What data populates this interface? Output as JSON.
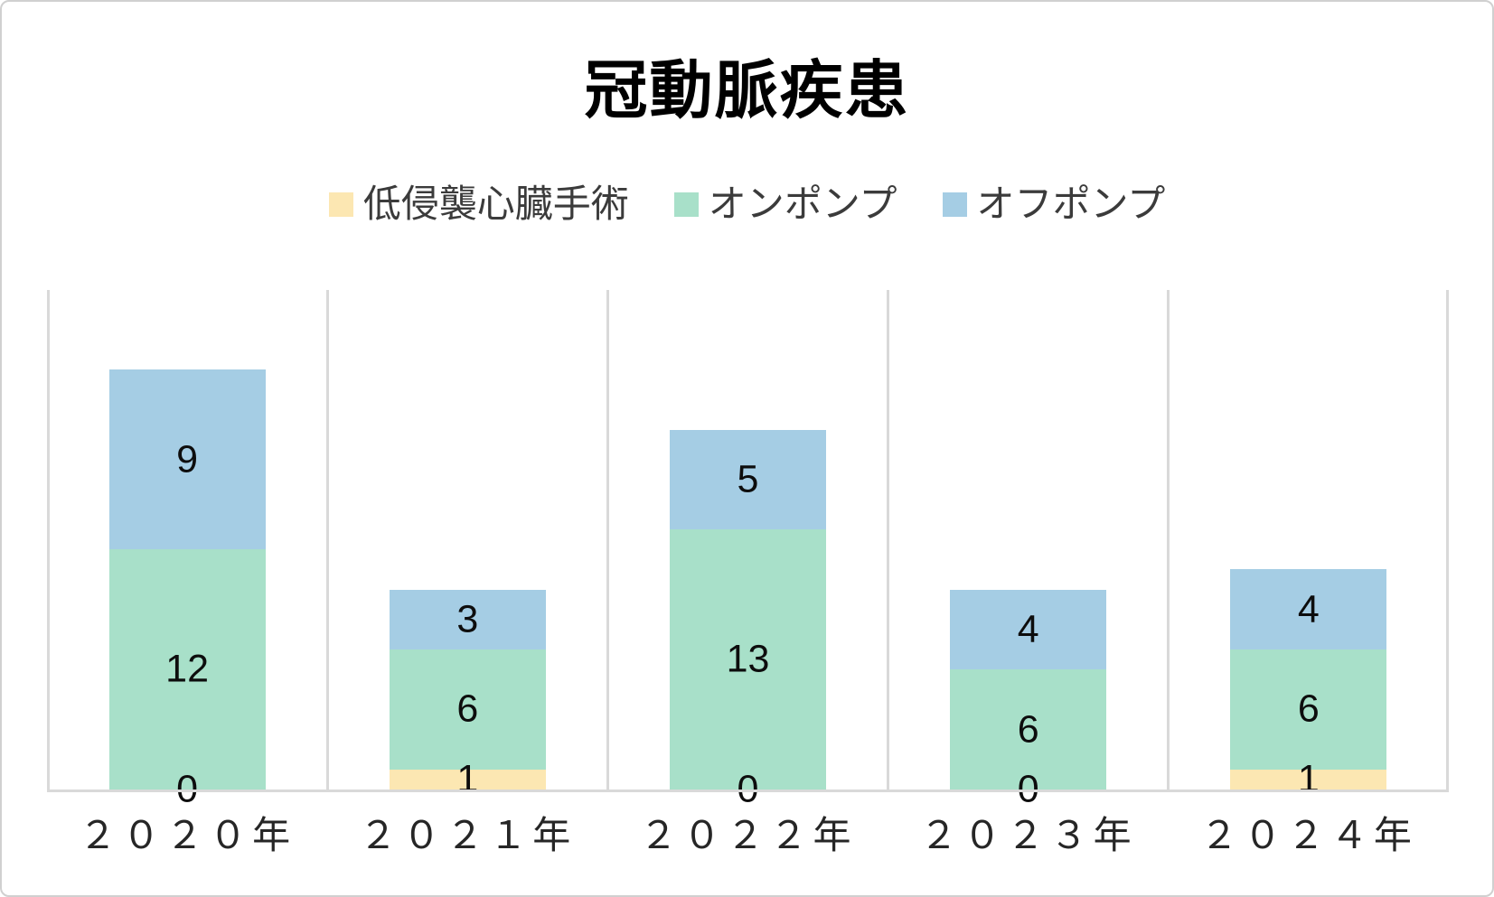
{
  "page": {
    "background_color": "#FFFFFF",
    "border_color": "#D0D0D0"
  },
  "chart_data": {
    "type": "bar",
    "variant": "stacked-column",
    "title": "冠動脈疾患",
    "categories": [
      "２０２０年",
      "２０２１年",
      "２０２２年",
      "２０２３年",
      "２０２４年"
    ],
    "series": [
      {
        "name": "低侵襲心臓手術",
        "color": "#FCE7B2",
        "values": [
          0,
          1,
          0,
          0,
          1
        ]
      },
      {
        "name": "オンポンプ",
        "color": "#A8E0C9",
        "values": [
          12,
          6,
          13,
          6,
          6
        ]
      },
      {
        "name": "オフポンプ",
        "color": "#A5CDE4",
        "values": [
          9,
          3,
          5,
          4,
          4
        ]
      }
    ],
    "stack_totals": [
      21,
      10,
      18,
      10,
      11
    ],
    "ylim": [
      0,
      25
    ],
    "y_axis_visible": false,
    "data_labels": true,
    "legend_position": "top",
    "grid": {
      "vertical_category_lines": true,
      "baseline": true,
      "color": "#D9D9D9"
    }
  }
}
